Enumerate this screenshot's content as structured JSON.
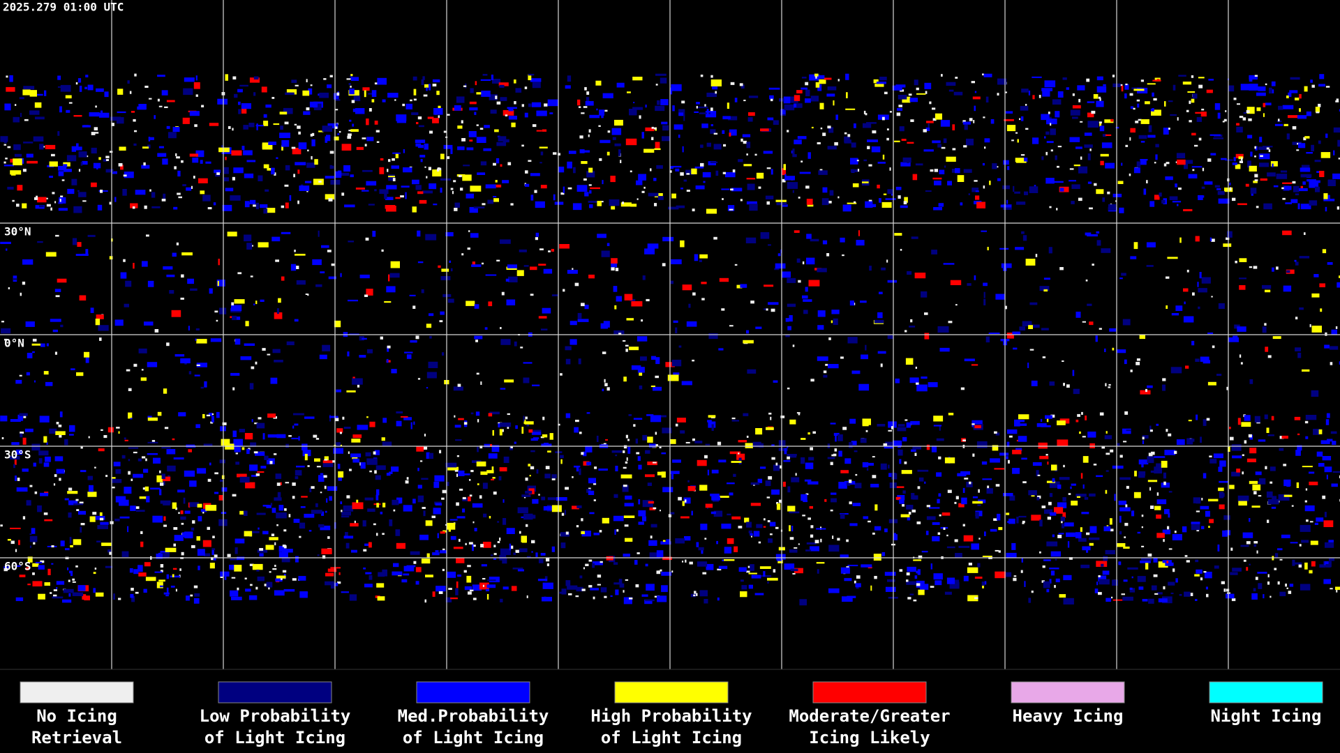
{
  "header": {
    "timestamp": "2025.279 01:00 UTC"
  },
  "map": {
    "latitude_labels": [
      "30°N",
      "0°N",
      "30°S",
      "60°S"
    ]
  },
  "legend": {
    "items": [
      {
        "lines": [
          "No Icing",
          "Retrieval"
        ],
        "color": "#efefef"
      },
      {
        "lines": [
          "Low Probability",
          "of Light Icing"
        ],
        "color": "#000080"
      },
      {
        "lines": [
          "Med.Probability",
          "of Light Icing"
        ],
        "color": "#0000ff"
      },
      {
        "lines": [
          "High Probability",
          "of Light Icing"
        ],
        "color": "#ffff00"
      },
      {
        "lines": [
          "Moderate/Greater",
          "Icing Likely"
        ],
        "color": "#ff0000"
      },
      {
        "lines": [
          "Heavy Icing"
        ],
        "color": "#e8a8e8"
      },
      {
        "lines": [
          "Night Icing"
        ],
        "color": "#00ffff"
      }
    ]
  }
}
